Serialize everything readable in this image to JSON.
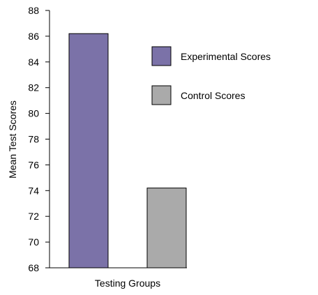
{
  "chart_data": {
    "type": "bar",
    "title": "",
    "xlabel": "Testing Groups",
    "ylabel": "Mean Test Scores",
    "ylim": [
      68,
      88
    ],
    "yticks": [
      "68",
      "70",
      "72",
      "74",
      "76",
      "78",
      "80",
      "82",
      "84",
      "86",
      "88"
    ],
    "series": [
      {
        "name": "Experimental Scores",
        "value": 86.2,
        "color": "#7b72a8"
      },
      {
        "name": "Control Scores",
        "value": 74.2,
        "color": "#aaaaaa"
      }
    ],
    "legend_placement": "top-right",
    "grid": false
  }
}
